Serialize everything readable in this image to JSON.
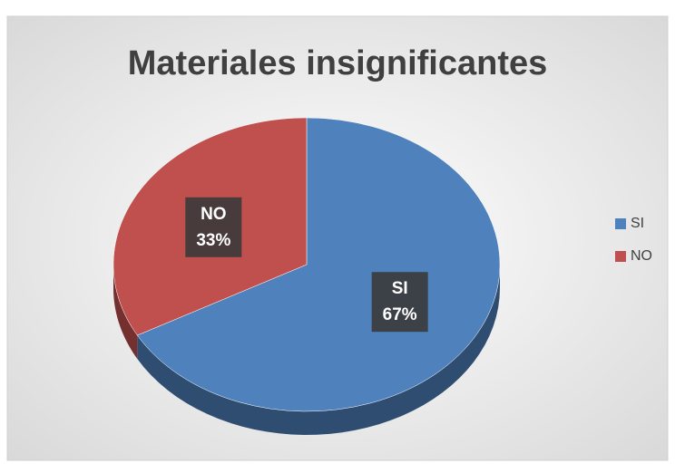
{
  "chart_data": {
    "type": "pie",
    "title": "Materiales insignificantes",
    "categories": [
      "SI",
      "NO"
    ],
    "values": [
      67,
      33
    ],
    "value_labels": [
      "67%",
      "33%"
    ],
    "colors": [
      "#4f81bd",
      "#c0504d"
    ],
    "legend": "right"
  }
}
